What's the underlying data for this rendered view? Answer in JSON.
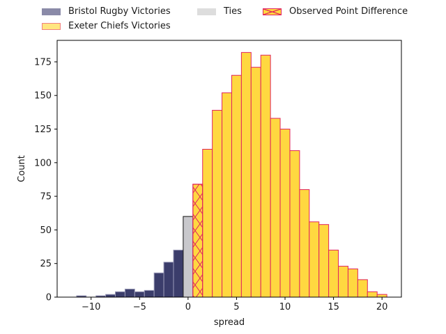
{
  "chart_data": {
    "type": "bar",
    "xlabel": "spread",
    "ylabel": "Count",
    "xlim": [
      -13.5,
      22
    ],
    "ylim": [
      0,
      191
    ],
    "xticks": [
      -10,
      -5,
      0,
      5,
      10,
      15,
      20
    ],
    "yticks": [
      0,
      25,
      50,
      75,
      100,
      125,
      150,
      175
    ],
    "bin_width": 1,
    "series": [
      {
        "name": "Bristol Rugby Victories",
        "color": "#3b3d6b",
        "edge": "#9a9ab8",
        "bins": [
          {
            "x": -11,
            "count": 1
          },
          {
            "x": -10,
            "count": 0
          },
          {
            "x": -9,
            "count": 1
          },
          {
            "x": -8,
            "count": 2
          },
          {
            "x": -7,
            "count": 4
          },
          {
            "x": -6,
            "count": 6
          },
          {
            "x": -5,
            "count": 4
          },
          {
            "x": -4,
            "count": 5
          },
          {
            "x": -3,
            "count": 18
          },
          {
            "x": -2,
            "count": 26
          },
          {
            "x": -1,
            "count": 35
          }
        ]
      },
      {
        "name": "Ties",
        "color": "#c8c8cc",
        "edge": "#111111",
        "bins": [
          {
            "x": 0,
            "count": 60
          }
        ]
      },
      {
        "name": "Exeter Chiefs Victories",
        "color": "#ffd840",
        "edge": "#e0245e",
        "bins": [
          {
            "x": 1,
            "count": 84
          },
          {
            "x": 2,
            "count": 110
          },
          {
            "x": 3,
            "count": 139
          },
          {
            "x": 4,
            "count": 152
          },
          {
            "x": 5,
            "count": 165
          },
          {
            "x": 6,
            "count": 182
          },
          {
            "x": 7,
            "count": 171
          },
          {
            "x": 8,
            "count": 180
          },
          {
            "x": 9,
            "count": 133
          },
          {
            "x": 10,
            "count": 125
          },
          {
            "x": 11,
            "count": 109
          },
          {
            "x": 12,
            "count": 80
          },
          {
            "x": 13,
            "count": 56
          },
          {
            "x": 14,
            "count": 54
          },
          {
            "x": 15,
            "count": 35
          },
          {
            "x": 16,
            "count": 23
          },
          {
            "x": 17,
            "count": 21
          },
          {
            "x": 18,
            "count": 13
          },
          {
            "x": 19,
            "count": 4
          },
          {
            "x": 20,
            "count": 2
          }
        ]
      }
    ],
    "observed": {
      "name": "Observed Point Difference",
      "x": 1,
      "hatch": "x",
      "color": "#ffd840",
      "edge": "#e0245e"
    },
    "legend": [
      {
        "label": "Bristol Rugby Victories",
        "fill": "#8a8aa8",
        "edge": "#8a8aa8",
        "hatch": false
      },
      {
        "label": "Ties",
        "fill": "#dddddd",
        "edge": "#dddddd",
        "hatch": false
      },
      {
        "label": "Observed Point Difference",
        "fill": "#ffd840",
        "edge": "#e0245e",
        "hatch": true
      },
      {
        "label": "Exeter Chiefs Victories",
        "fill": "#ffe680",
        "edge": "#f08080",
        "hatch": false
      }
    ],
    "legend_position": "top-center, outside plot"
  }
}
